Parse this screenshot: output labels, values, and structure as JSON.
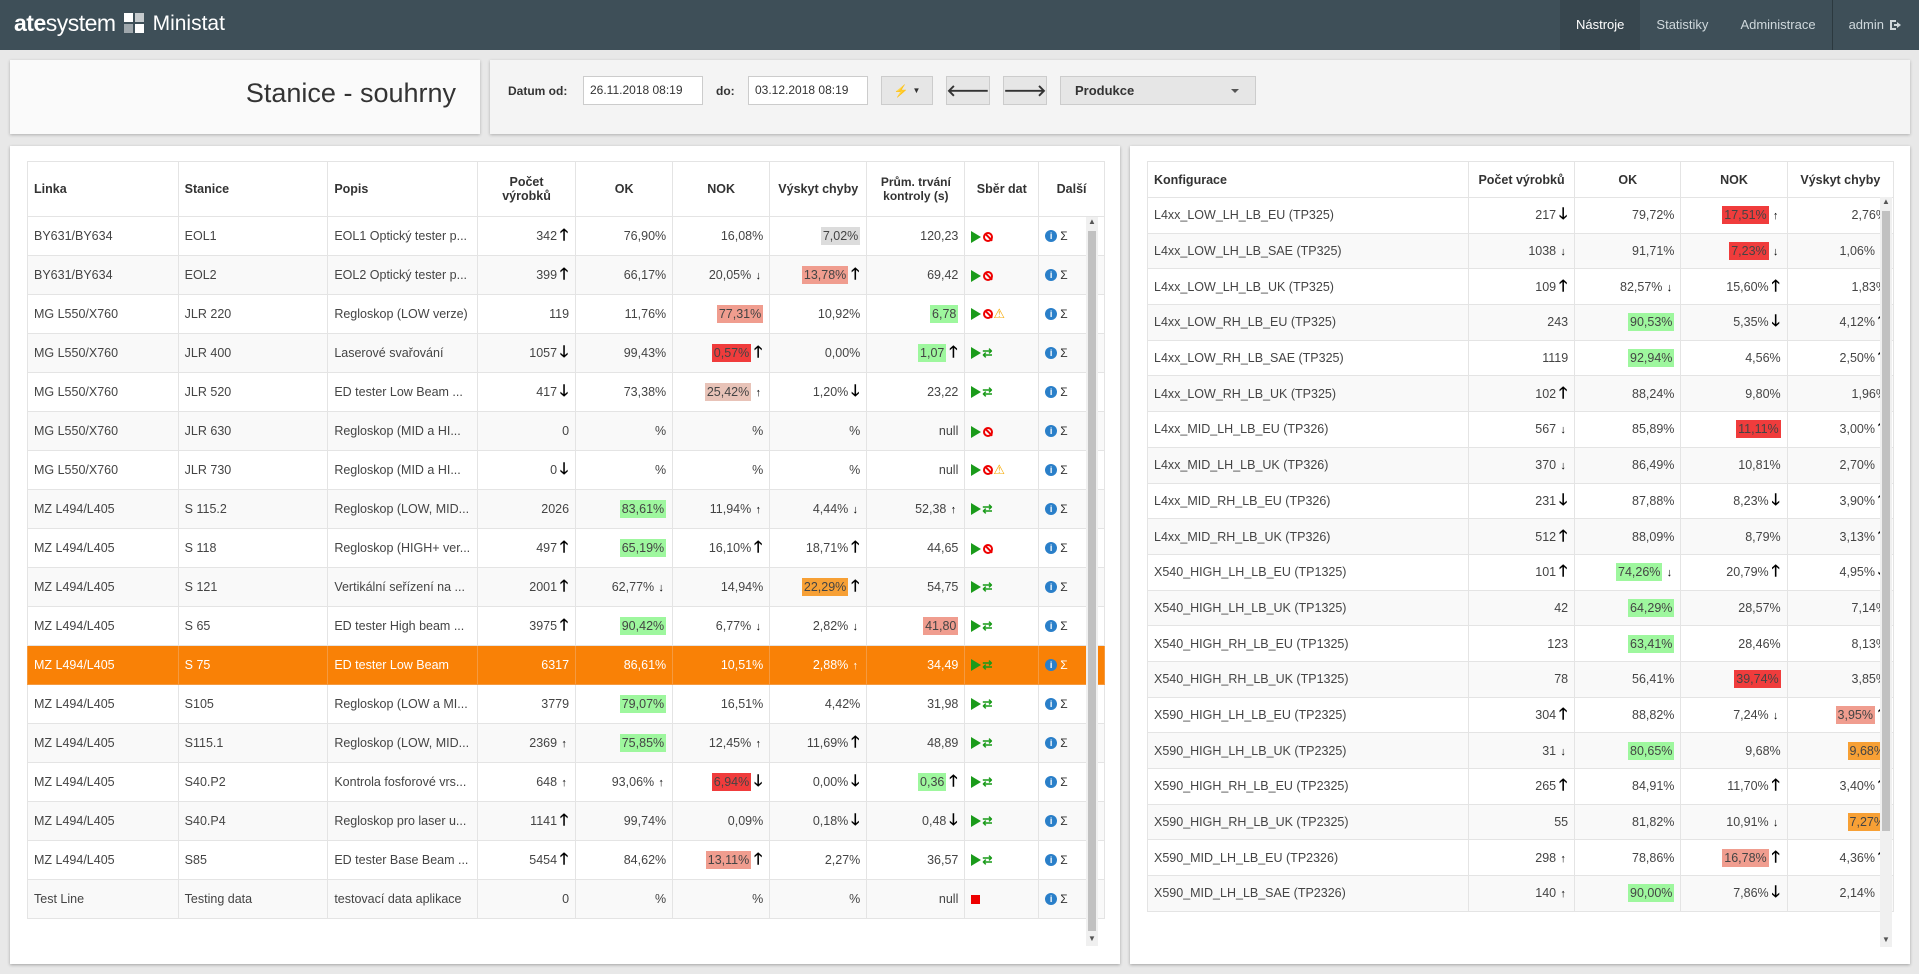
{
  "navbar": {
    "brand_ate": "ate",
    "brand_system": "system",
    "app_name": "Ministat",
    "links": [
      "Nástroje",
      "Statistiky",
      "Administrace"
    ],
    "user": "admin"
  },
  "page": {
    "title": "Stanice - souhrny"
  },
  "filter": {
    "from_label": "Datum od:",
    "from_value": "26.11.2018 08:19",
    "to_label": "do:",
    "to_value": "03.12.2018 08:19",
    "mode_select": "Produkce"
  },
  "colors": {
    "navbar": "#3e4f58",
    "selected_row": "#f98106",
    "good": "#9ef79e",
    "bad": "#f03c3c",
    "bad_light": "#f09d8f",
    "warn": "#f7a035"
  },
  "left_table": {
    "headers": [
      "Linka",
      "Stanice",
      "Popis",
      "Počet výrobků",
      "OK",
      "NOK",
      "Výskyt chyby",
      "Prům. trvání kontroly (s)",
      "Sběr dat",
      "Další"
    ],
    "rows": [
      {
        "linka": "BY631/BY634",
        "stanice": "EOL1",
        "popis": "EOL1 Optický tester p...",
        "pocet": "342",
        "ok": "76,90%",
        "nok": "16,08%",
        "vyskyt": "7,02%",
        "prum": "120,23"
      },
      {
        "linka": "BY631/BY634",
        "stanice": "EOL2",
        "popis": "EOL2 Optický tester p...",
        "pocet": "399",
        "ok": "66,17%",
        "nok": "20,05%",
        "vyskyt": "13,78%",
        "prum": "69,42"
      },
      {
        "linka": "MG L550/X760",
        "stanice": "JLR 220",
        "popis": "Regloskop (LOW verze)",
        "pocet": "119",
        "ok": "11,76%",
        "nok": "77,31%",
        "vyskyt": "10,92%",
        "prum": "6,78"
      },
      {
        "linka": "MG L550/X760",
        "stanice": "JLR 400",
        "popis": "Laserové svařování",
        "pocet": "1057",
        "ok": "99,43%",
        "nok": "0,57%",
        "vyskyt": "0,00%",
        "prum": "1,07"
      },
      {
        "linka": "MG L550/X760",
        "stanice": "JLR 520",
        "popis": "ED tester Low Beam ...",
        "pocet": "417",
        "ok": "73,38%",
        "nok": "25,42%",
        "vyskyt": "1,20%",
        "prum": "23,22"
      },
      {
        "linka": "MG L550/X760",
        "stanice": "JLR 630",
        "popis": "Regloskop (MID a HI...",
        "pocet": "0",
        "ok": "%",
        "nok": "%",
        "vyskyt": "%",
        "prum": "null"
      },
      {
        "linka": "MG L550/X760",
        "stanice": "JLR 730",
        "popis": "Regloskop (MID a HI...",
        "pocet": "0",
        "ok": "%",
        "nok": "%",
        "vyskyt": "%",
        "prum": "null"
      },
      {
        "linka": "MZ L494/L405",
        "stanice": "S 115.2",
        "popis": "Regloskop (LOW, MID...",
        "pocet": "2026",
        "ok": "83,61%",
        "nok": "11,94%",
        "vyskyt": "4,44%",
        "prum": "52,38"
      },
      {
        "linka": "MZ L494/L405",
        "stanice": "S 118",
        "popis": "Regloskop (HIGH+ ver...",
        "pocet": "497",
        "ok": "65,19%",
        "nok": "16,10%",
        "vyskyt": "18,71%",
        "prum": "44,65"
      },
      {
        "linka": "MZ L494/L405",
        "stanice": "S 121",
        "popis": "Vertikální seřízení na ...",
        "pocet": "2001",
        "ok": "62,77%",
        "nok": "14,94%",
        "vyskyt": "22,29%",
        "prum": "54,75"
      },
      {
        "linka": "MZ L494/L405",
        "stanice": "S 65",
        "popis": "ED tester High beam ...",
        "pocet": "3975",
        "ok": "90,42%",
        "nok": "6,77%",
        "vyskyt": "2,82%",
        "prum": "41,80"
      },
      {
        "linka": "MZ L494/L405",
        "stanice": "S 75",
        "popis": "ED tester Low Beam",
        "pocet": "6317",
        "ok": "86,61%",
        "nok": "10,51%",
        "vyskyt": "2,88%",
        "prum": "34,49"
      },
      {
        "linka": "MZ L494/L405",
        "stanice": "S105",
        "popis": "Regloskop (LOW a MI...",
        "pocet": "3779",
        "ok": "79,07%",
        "nok": "16,51%",
        "vyskyt": "4,42%",
        "prum": "31,98"
      },
      {
        "linka": "MZ L494/L405",
        "stanice": "S115.1",
        "popis": "Regloskop (LOW, MID...",
        "pocet": "2369",
        "ok": "75,85%",
        "nok": "12,45%",
        "vyskyt": "11,69%",
        "prum": "48,89"
      },
      {
        "linka": "MZ L494/L405",
        "stanice": "S40.P2",
        "popis": "Kontrola fosforové vrs...",
        "pocet": "648",
        "ok": "93,06%",
        "nok": "6,94%",
        "vyskyt": "0,00%",
        "prum": "0,36"
      },
      {
        "linka": "MZ L494/L405",
        "stanice": "S40.P4",
        "popis": "Regloskop pro laser u...",
        "pocet": "1141",
        "ok": "99,74%",
        "nok": "0,09%",
        "vyskyt": "0,18%",
        "prum": "0,48"
      },
      {
        "linka": "MZ L494/L405",
        "stanice": "S85",
        "popis": "ED tester Base Beam ...",
        "pocet": "5454",
        "ok": "84,62%",
        "nok": "13,11%",
        "vyskyt": "2,27%",
        "prum": "36,57"
      },
      {
        "linka": "Test Line",
        "stanice": "Testing data",
        "popis": "testovací data aplikace",
        "pocet": "0",
        "ok": "%",
        "nok": "%",
        "vyskyt": "%",
        "prum": "null"
      }
    ]
  },
  "right_table": {
    "headers": [
      "Konfigurace",
      "Počet výrobků",
      "OK",
      "NOK",
      "Výskyt chyby"
    ],
    "rows": [
      {
        "konf": "L4xx_LOW_LH_LB_EU (TP325)",
        "pocet": "217",
        "ok": "79,72%",
        "nok": "17,51%",
        "vyskyt": "2,76%"
      },
      {
        "konf": "L4xx_LOW_LH_LB_SAE (TP325)",
        "pocet": "1038",
        "ok": "91,71%",
        "nok": "7,23%",
        "vyskyt": "1,06%"
      },
      {
        "konf": "L4xx_LOW_LH_LB_UK (TP325)",
        "pocet": "109",
        "ok": "82,57%",
        "nok": "15,60%",
        "vyskyt": "1,83%"
      },
      {
        "konf": "L4xx_LOW_RH_LB_EU (TP325)",
        "pocet": "243",
        "ok": "90,53%",
        "nok": "5,35%",
        "vyskyt": "4,12%"
      },
      {
        "konf": "L4xx_LOW_RH_LB_SAE (TP325)",
        "pocet": "1119",
        "ok": "92,94%",
        "nok": "4,56%",
        "vyskyt": "2,50%"
      },
      {
        "konf": "L4xx_LOW_RH_LB_UK (TP325)",
        "pocet": "102",
        "ok": "88,24%",
        "nok": "9,80%",
        "vyskyt": "1,96%"
      },
      {
        "konf": "L4xx_MID_LH_LB_EU (TP326)",
        "pocet": "567",
        "ok": "85,89%",
        "nok": "11,11%",
        "vyskyt": "3,00%"
      },
      {
        "konf": "L4xx_MID_LH_LB_UK (TP326)",
        "pocet": "370",
        "ok": "86,49%",
        "nok": "10,81%",
        "vyskyt": "2,70%"
      },
      {
        "konf": "L4xx_MID_RH_LB_EU (TP326)",
        "pocet": "231",
        "ok": "87,88%",
        "nok": "8,23%",
        "vyskyt": "3,90%"
      },
      {
        "konf": "L4xx_MID_RH_LB_UK (TP326)",
        "pocet": "512",
        "ok": "88,09%",
        "nok": "8,79%",
        "vyskyt": "3,13%"
      },
      {
        "konf": "X540_HIGH_LH_LB_EU (TP1325)",
        "pocet": "101",
        "ok": "74,26%",
        "nok": "20,79%",
        "vyskyt": "4,95%"
      },
      {
        "konf": "X540_HIGH_LH_LB_UK (TP1325)",
        "pocet": "42",
        "ok": "64,29%",
        "nok": "28,57%",
        "vyskyt": "7,14%"
      },
      {
        "konf": "X540_HIGH_RH_LB_EU (TP1325)",
        "pocet": "123",
        "ok": "63,41%",
        "nok": "28,46%",
        "vyskyt": "8,13%"
      },
      {
        "konf": "X540_HIGH_RH_LB_UK (TP1325)",
        "pocet": "78",
        "ok": "56,41%",
        "nok": "39,74%",
        "vyskyt": "3,85%"
      },
      {
        "konf": "X590_HIGH_LH_LB_EU (TP2325)",
        "pocet": "304",
        "ok": "88,82%",
        "nok": "7,24%",
        "vyskyt": "3,95%"
      },
      {
        "konf": "X590_HIGH_LH_LB_UK (TP2325)",
        "pocet": "31",
        "ok": "80,65%",
        "nok": "9,68%",
        "vyskyt": "9,68%"
      },
      {
        "konf": "X590_HIGH_RH_LB_EU (TP2325)",
        "pocet": "265",
        "ok": "84,91%",
        "nok": "11,70%",
        "vyskyt": "3,40%"
      },
      {
        "konf": "X590_HIGH_RH_LB_UK (TP2325)",
        "pocet": "55",
        "ok": "81,82%",
        "nok": "10,91%",
        "vyskyt": "7,27%"
      },
      {
        "konf": "X590_MID_LH_LB_EU (TP2326)",
        "pocet": "298",
        "ok": "78,86%",
        "nok": "16,78%",
        "vyskyt": "4,36%"
      },
      {
        "konf": "X590_MID_LH_LB_SAE (TP2326)",
        "pocet": "140",
        "ok": "90,00%",
        "nok": "7,86%",
        "vyskyt": "2,14%"
      }
    ]
  }
}
